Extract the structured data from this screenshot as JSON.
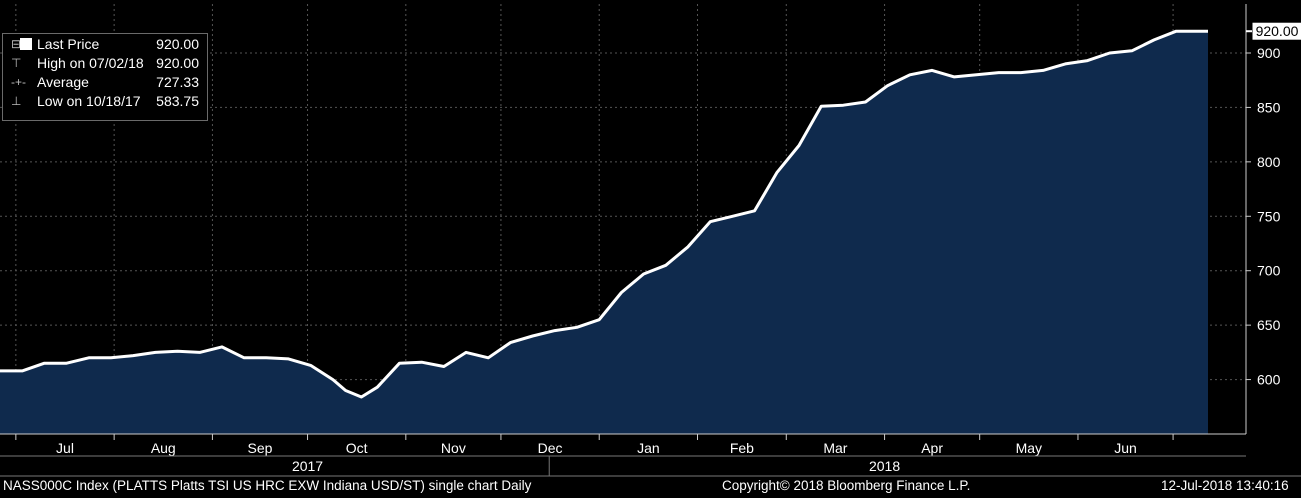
{
  "chart_data": {
    "type": "area",
    "title": "NASS000C Index (PLATTS Platts TSI US HRC EXW Indiana USD/ST) single chart Daily",
    "ylim": [
      550,
      945
    ],
    "yticks": [
      600,
      650,
      700,
      750,
      800,
      850,
      900
    ],
    "x_tick_labels": [
      "Jul",
      "Aug",
      "Sep",
      "Oct",
      "Nov",
      "Dec",
      "Jan",
      "Feb",
      "Mar",
      "Apr",
      "May",
      "Jun"
    ],
    "year_labels": [
      "2017",
      "2018"
    ],
    "grid": true,
    "legend_position": "top-left",
    "series": [
      {
        "x": [
          "2017-07-03",
          "2017-07-10",
          "2017-07-17",
          "2017-07-24",
          "2017-07-31",
          "2017-08-07",
          "2017-08-14",
          "2017-08-21",
          "2017-08-28",
          "2017-09-04",
          "2017-09-11",
          "2017-09-18",
          "2017-09-25",
          "2017-10-02",
          "2017-10-09",
          "2017-10-13",
          "2017-10-18",
          "2017-10-23",
          "2017-10-30",
          "2017-11-06",
          "2017-11-13",
          "2017-11-20",
          "2017-11-27",
          "2017-12-04",
          "2017-12-11",
          "2017-12-18",
          "2017-12-25",
          "2018-01-01",
          "2018-01-08",
          "2018-01-15",
          "2018-01-22",
          "2018-01-29",
          "2018-02-05",
          "2018-02-12",
          "2018-02-19",
          "2018-02-26",
          "2018-03-05",
          "2018-03-12",
          "2018-03-19",
          "2018-03-26",
          "2018-04-02",
          "2018-04-09",
          "2018-04-16",
          "2018-04-23",
          "2018-04-30",
          "2018-05-07",
          "2018-05-14",
          "2018-05-21",
          "2018-05-28",
          "2018-06-04",
          "2018-06-11",
          "2018-06-18",
          "2018-06-25",
          "2018-07-02",
          "2018-07-12"
        ],
        "values": [
          608,
          615,
          615,
          620,
          620,
          622,
          625,
          626,
          625,
          630,
          620,
          620,
          619,
          613,
          600,
          590,
          584,
          593,
          615,
          616,
          612,
          625,
          620,
          634,
          640,
          645,
          648,
          655,
          680,
          697,
          705,
          722,
          745,
          750,
          755,
          790,
          815,
          851,
          852,
          855,
          870,
          880,
          884,
          878,
          880,
          882,
          882,
          884,
          890,
          893,
          900,
          902,
          912,
          920,
          920
        ]
      }
    ],
    "legend": [
      {
        "label": "Last Price",
        "value": "920.00"
      },
      {
        "label": "High on 07/02/18",
        "value": "920.00"
      },
      {
        "label": "Average",
        "value": "727.33"
      },
      {
        "label": "Low on 10/18/17",
        "value": "583.75"
      }
    ],
    "last_value_label": "920.00",
    "colors": {
      "area": "#0f2a4d",
      "line": "#ffffff",
      "grid": "#555555",
      "background": "#000000"
    }
  },
  "footer": {
    "left": "NASS000C Index (PLATTS Platts TSI US HRC EXW Indiana USD/ST) single chart  Daily",
    "center": "Copyright© 2018 Bloomberg Finance L.P.",
    "right": "12-Jul-2018 13:40:16"
  }
}
